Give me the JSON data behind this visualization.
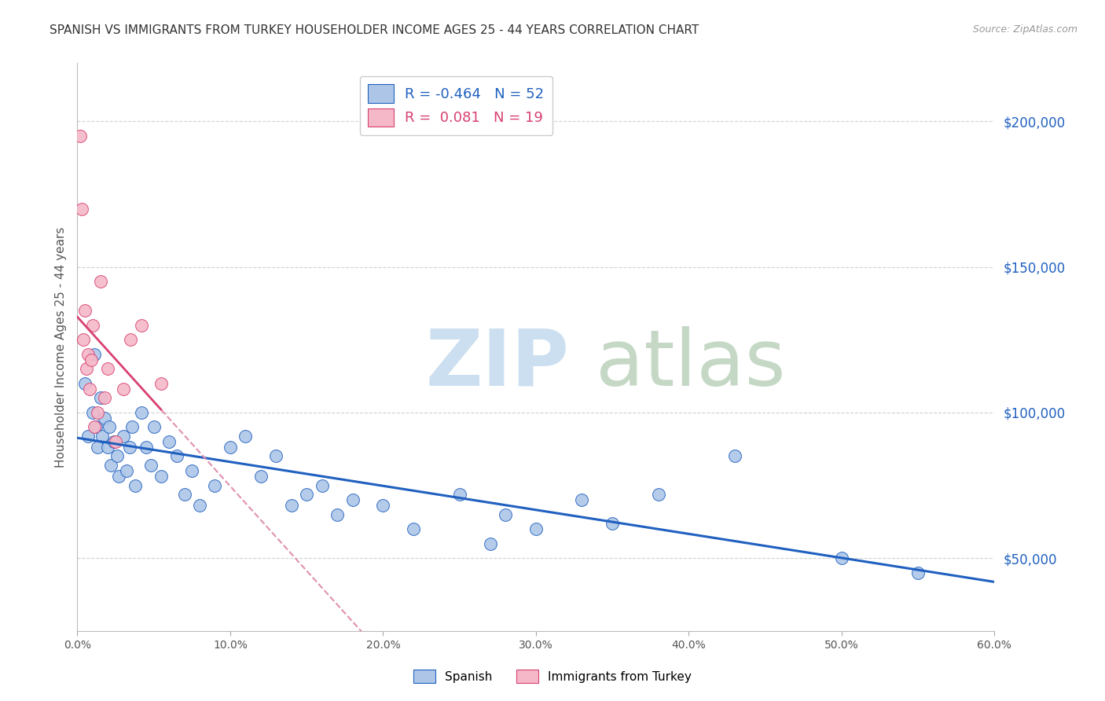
{
  "title": "SPANISH VS IMMIGRANTS FROM TURKEY HOUSEHOLDER INCOME AGES 25 - 44 YEARS CORRELATION CHART",
  "source": "Source: ZipAtlas.com",
  "ylabel": "Householder Income Ages 25 - 44 years",
  "ytick_values": [
    50000,
    100000,
    150000,
    200000
  ],
  "r_spanish": -0.464,
  "n_spanish": 52,
  "r_turkey": 0.081,
  "n_turkey": 19,
  "color_spanish": "#adc6e8",
  "color_turkey": "#f5b8c8",
  "line_color_spanish": "#2060c0",
  "line_color_turkey_solid": "#d84070",
  "line_color_turkey_dashed": "#e090b0",
  "background_color": "#ffffff",
  "grid_color": "#cccccc",
  "spanish_x": [
    0.5,
    0.7,
    1.0,
    1.1,
    1.2,
    1.3,
    1.5,
    1.6,
    1.8,
    2.0,
    2.1,
    2.2,
    2.4,
    2.6,
    2.7,
    3.0,
    3.2,
    3.4,
    3.6,
    3.8,
    4.2,
    4.5,
    4.8,
    5.0,
    5.5,
    6.0,
    6.5,
    7.0,
    7.5,
    8.0,
    9.0,
    10.0,
    11.0,
    12.0,
    13.0,
    14.0,
    15.0,
    16.0,
    17.0,
    18.0,
    20.0,
    22.0,
    25.0,
    27.0,
    28.0,
    30.0,
    33.0,
    35.0,
    38.0,
    43.0,
    50.0,
    55.0
  ],
  "spanish_y": [
    110000,
    92000,
    100000,
    120000,
    95000,
    88000,
    105000,
    92000,
    98000,
    88000,
    95000,
    82000,
    90000,
    85000,
    78000,
    92000,
    80000,
    88000,
    95000,
    75000,
    100000,
    88000,
    82000,
    95000,
    78000,
    90000,
    85000,
    72000,
    80000,
    68000,
    75000,
    88000,
    92000,
    78000,
    85000,
    68000,
    72000,
    75000,
    65000,
    70000,
    68000,
    60000,
    72000,
    55000,
    65000,
    60000,
    70000,
    62000,
    72000,
    85000,
    50000,
    45000
  ],
  "turkey_x": [
    0.2,
    0.3,
    0.4,
    0.5,
    0.6,
    0.7,
    0.8,
    0.9,
    1.0,
    1.1,
    1.3,
    1.5,
    1.8,
    2.0,
    2.5,
    3.0,
    3.5,
    4.2,
    5.5
  ],
  "turkey_y": [
    195000,
    170000,
    125000,
    135000,
    115000,
    120000,
    108000,
    118000,
    130000,
    95000,
    100000,
    145000,
    105000,
    115000,
    90000,
    108000,
    125000,
    130000,
    110000
  ]
}
